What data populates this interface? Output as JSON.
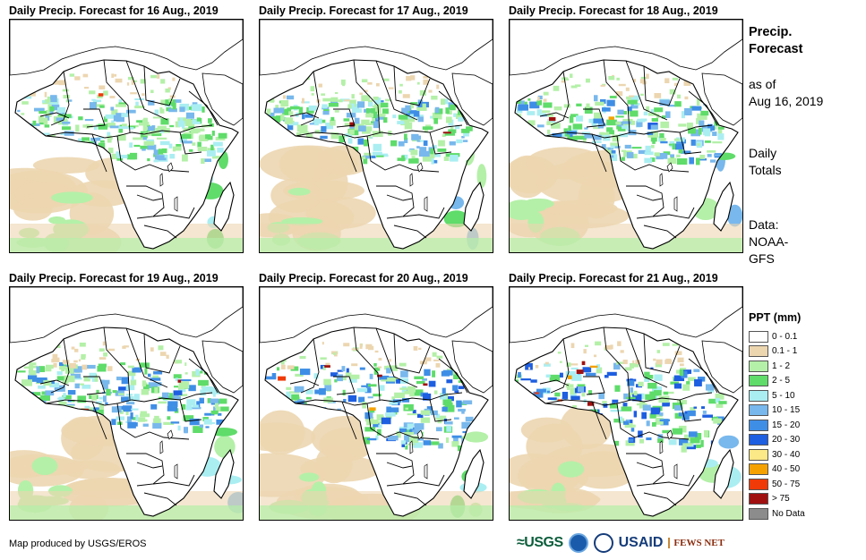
{
  "panels": [
    {
      "title": "Daily Precip. Forecast for 16 Aug., 2019",
      "day": 0
    },
    {
      "title": "Daily Precip. Forecast for 17 Aug., 2019",
      "day": 1
    },
    {
      "title": "Daily Precip. Forecast for 18 Aug., 2019",
      "day": 2
    },
    {
      "title": "Daily Precip. Forecast for 19 Aug., 2019",
      "day": 3
    },
    {
      "title": "Daily Precip. Forecast for 20 Aug., 2019",
      "day": 4
    },
    {
      "title": "Daily Precip. Forecast for 21 Aug., 2019",
      "day": 5
    }
  ],
  "side": {
    "title_line1": "Precip.",
    "title_line2": "Forecast",
    "asof_line1": "as of",
    "asof_line2": "Aug 16, 2019",
    "totals_line1": "Daily",
    "totals_line2": "Totals",
    "data_line1": "Data:",
    "data_line2": "NOAA-",
    "data_line3": "GFS"
  },
  "legend": {
    "title": "PPT (mm)",
    "items": [
      {
        "label": "0 - 0.1",
        "color": "#ffffff"
      },
      {
        "label": "0.1 - 1",
        "color": "#ecd6b0"
      },
      {
        "label": "1 - 2",
        "color": "#b4f0a8"
      },
      {
        "label": "2 - 5",
        "color": "#5fdc6a"
      },
      {
        "label": "5 - 10",
        "color": "#aaeef2"
      },
      {
        "label": "10 - 15",
        "color": "#78b8ec"
      },
      {
        "label": "15 - 20",
        "color": "#3f8ee6"
      },
      {
        "label": "20 - 30",
        "color": "#1e5ee0"
      },
      {
        "label": "30 - 40",
        "color": "#fbe886"
      },
      {
        "label": "40 - 50",
        "color": "#f5a200"
      },
      {
        "label": "50 - 75",
        "color": "#f03a08"
      },
      {
        "label": "> 75",
        "color": "#a01010"
      },
      {
        "label": "No Data",
        "color": "#8c8c8c"
      }
    ]
  },
  "footer": {
    "credit": "Map produced by USGS/EROS"
  },
  "logos": {
    "usgs": "≈USGS",
    "usaid": "USAID",
    "fews": "FEWS NET"
  }
}
